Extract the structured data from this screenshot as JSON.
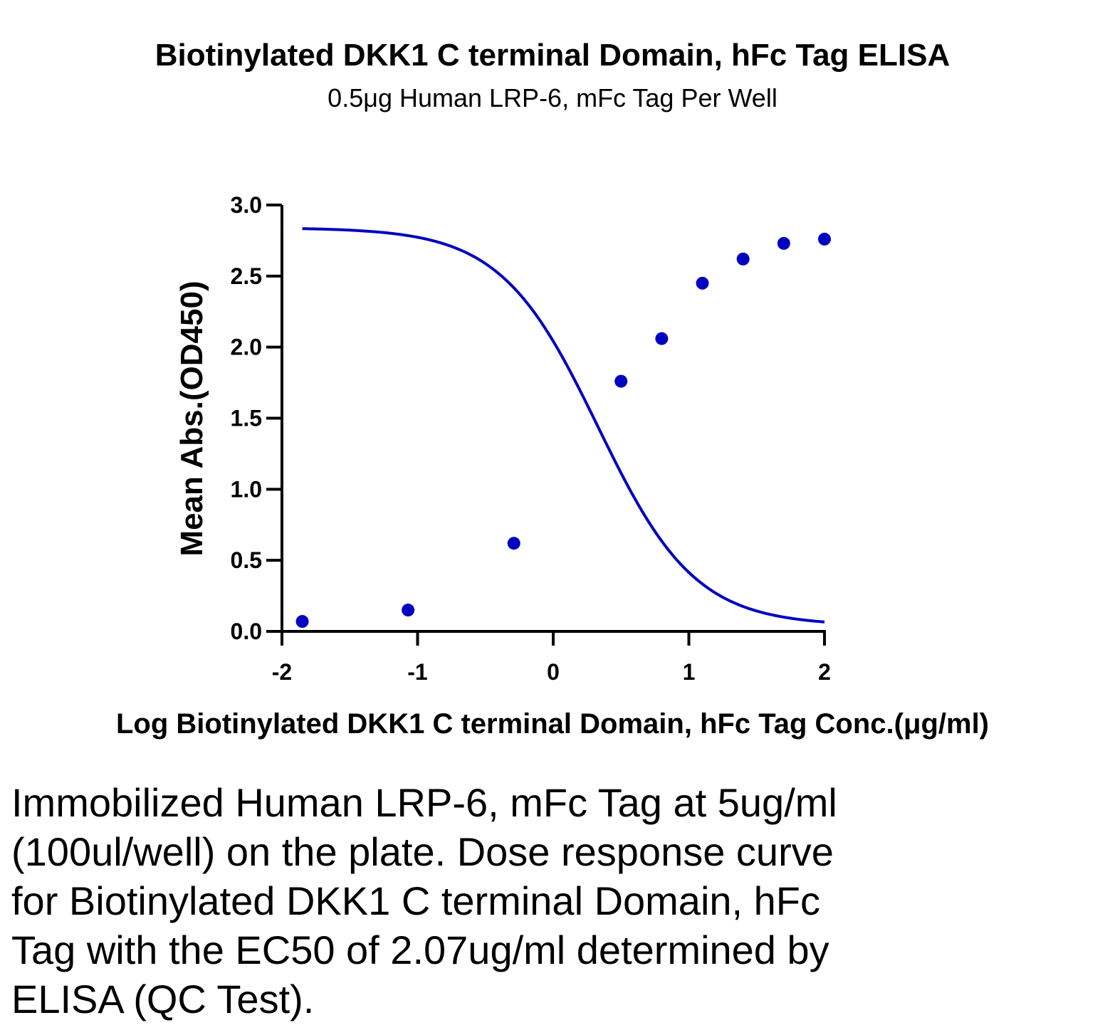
{
  "chart_data": {
    "type": "scatter",
    "title": "Biotinylated DKK1 C terminal Domain, hFc Tag ELISA",
    "subtitle": "0.5μg Human LRP-6, mFc Tag Per Well",
    "xlabel": "Log Biotinylated DKK1 C terminal Domain, hFc  Tag Conc.(μg/ml)",
    "ylabel": "Mean Abs.(OD450)",
    "xlim": [
      -2,
      2
    ],
    "ylim": [
      0,
      3
    ],
    "x_ticks": [
      "-2",
      "-1",
      "0",
      "1",
      "2"
    ],
    "y_ticks": [
      "0.0",
      "0.5",
      "1.0",
      "1.5",
      "2.0",
      "2.5",
      "3.0"
    ],
    "series": [
      {
        "x": [
          -1.85,
          -1.07,
          -0.29,
          0.5,
          0.8,
          1.1,
          1.4,
          1.7,
          2.0
        ],
        "y": [
          0.07,
          0.15,
          0.62,
          1.76,
          2.06,
          2.45,
          2.62,
          2.73,
          2.76
        ],
        "fit": "sigmoidal 4PL",
        "color": "#0000c0"
      }
    ],
    "grid": false
  },
  "caption": "Immobilized Human LRP-6, mFc Tag at 5ug/ml (100ul/well) on the plate. Dose response curve for Biotinylated DKK1 C terminal Domain, hFc Tag with the EC50 of 2.07ug/ml determined by ELISA (QC Test)."
}
